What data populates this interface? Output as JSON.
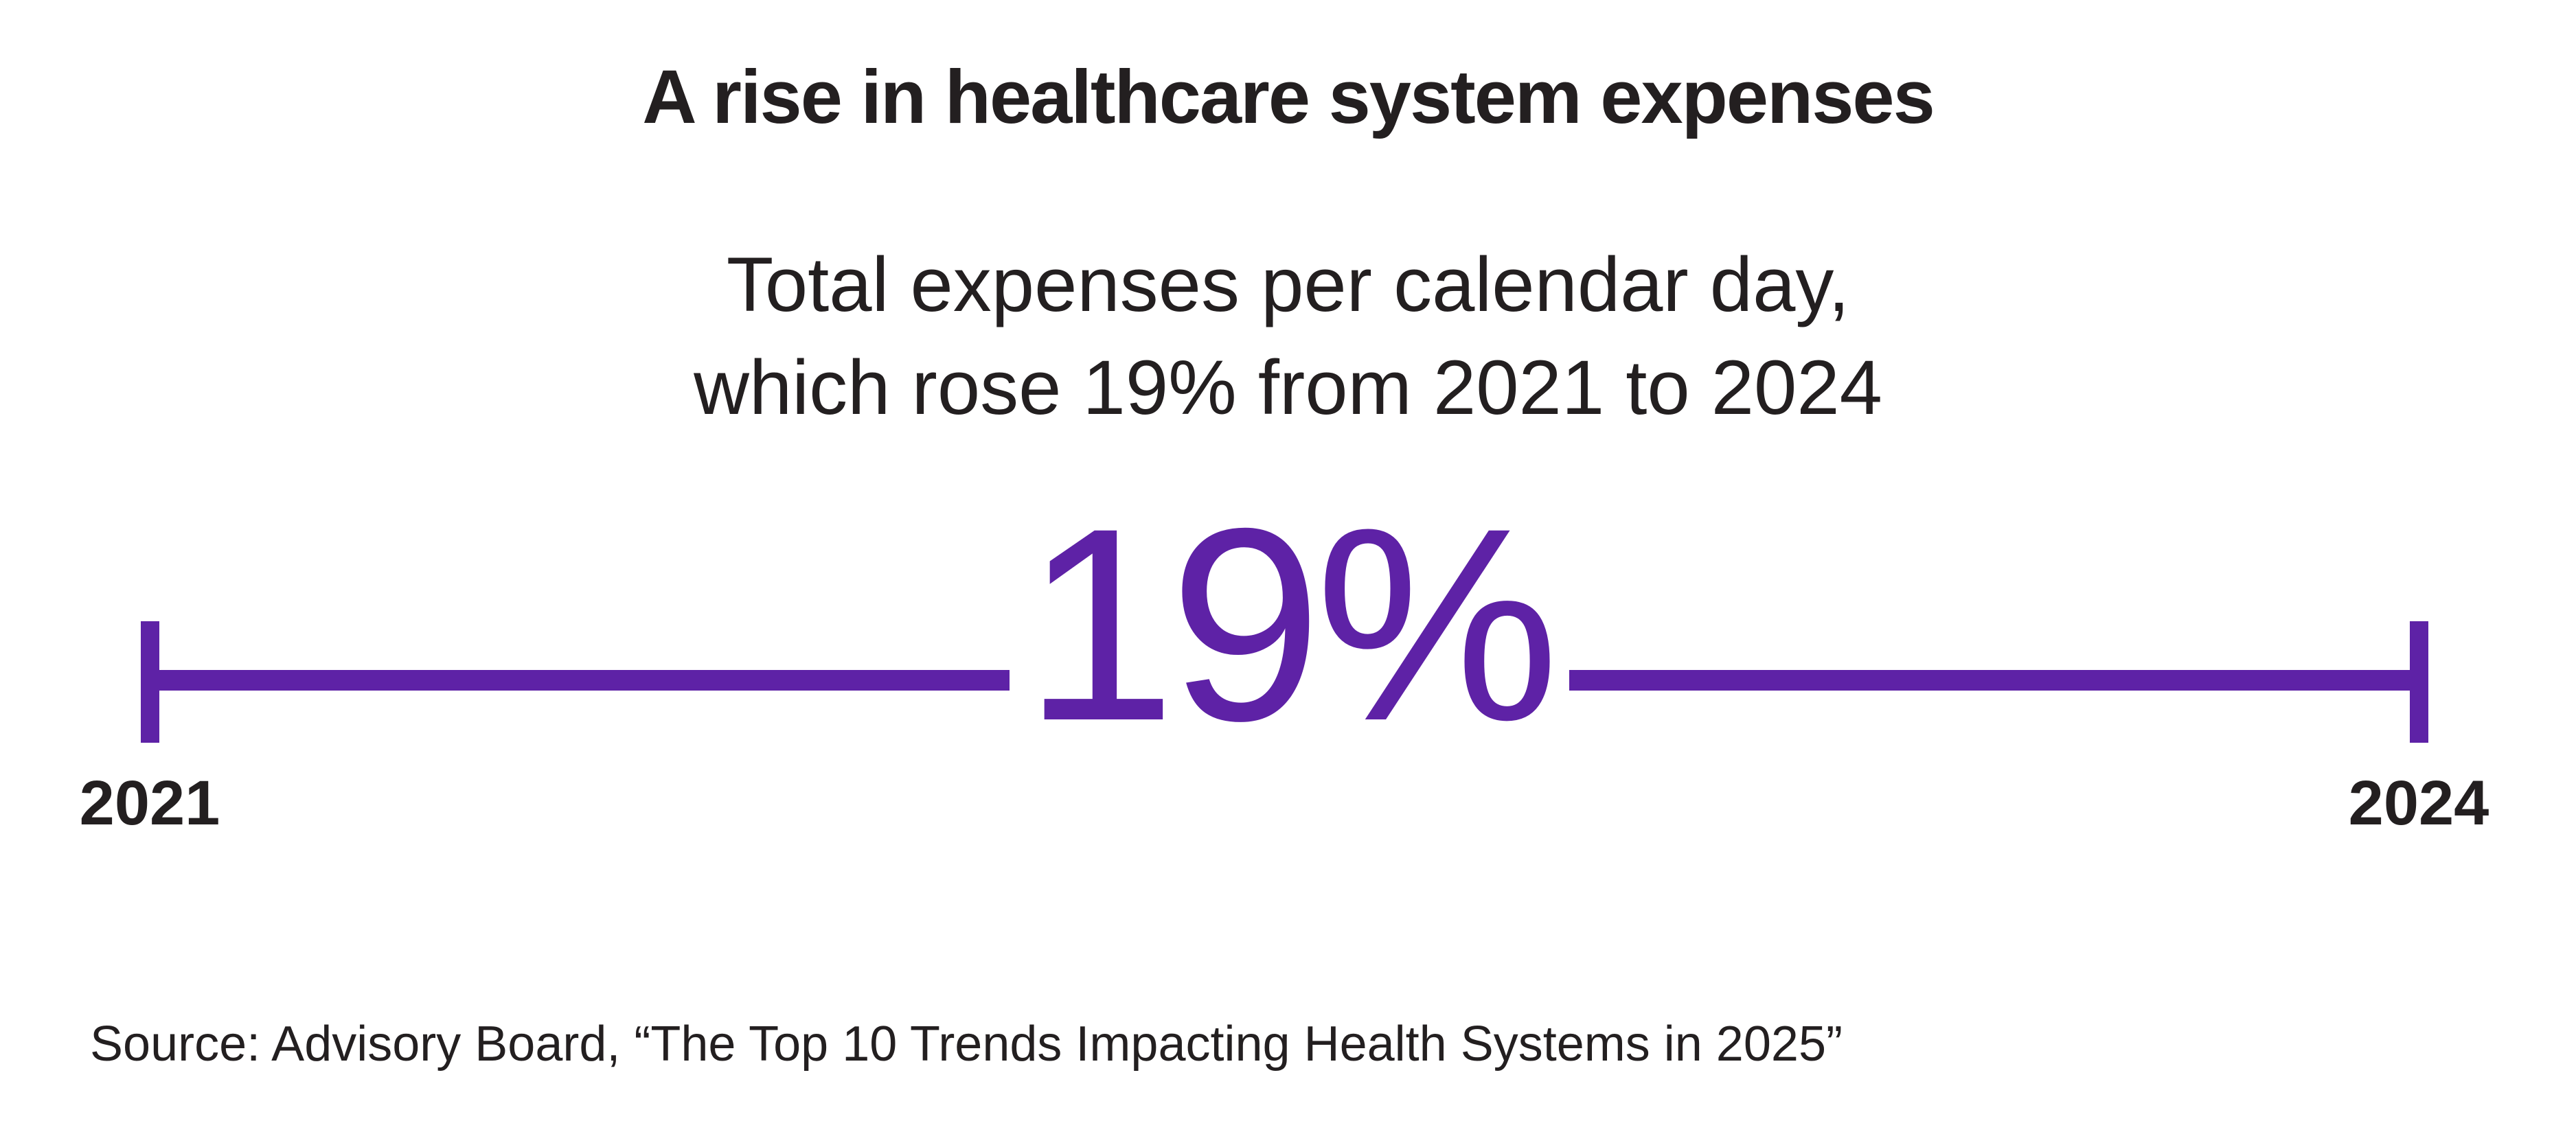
{
  "title": "A rise in healthcare system expenses",
  "subtitle": [
    "Total expenses per calendar day,",
    "which rose 19% from 2021 to 2024"
  ],
  "colors": {
    "accent": "#5e22a6",
    "text": "#231f20"
  },
  "chart_data": {
    "type": "timeline",
    "title": "A rise in healthcare system expenses",
    "value_label": "19%",
    "value": 19,
    "start_label": "2021",
    "end_label": "2024"
  },
  "source": "Source: Advisory Board, “The Top 10 Trends Impacting Health Systems in 2025”"
}
